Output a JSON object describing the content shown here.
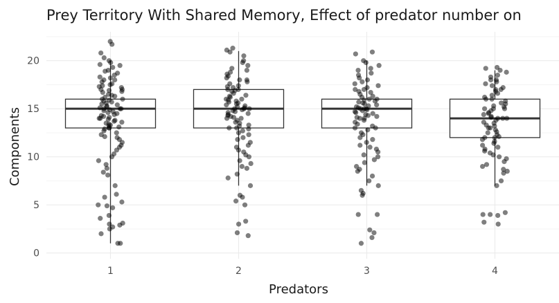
{
  "chart_data": {
    "type": "boxplot",
    "title": "Prey Territory With Shared Memory, Effect of predator number on",
    "xlabel": "Predators",
    "ylabel": "Components",
    "categories": [
      "1",
      "2",
      "3",
      "4"
    ],
    "ylim": [
      -0.6,
      23
    ],
    "yticks": [
      0,
      5,
      10,
      15,
      20
    ],
    "grid": true,
    "boxes": [
      {
        "category": "1",
        "whisker_low": 1,
        "q1": 13,
        "median": 15,
        "q3": 16,
        "whisker_high": 20,
        "points": [
          22,
          21.7,
          20.8,
          20.3,
          20,
          19.8,
          19.6,
          19.5,
          19.3,
          19,
          18.9,
          18.7,
          18.5,
          18.3,
          18.2,
          18,
          18,
          17.8,
          17.6,
          17.5,
          17.4,
          17.3,
          17.2,
          17,
          17,
          16.9,
          16.8,
          16.7,
          16.5,
          16.4,
          16.3,
          16.2,
          16,
          16,
          15.9,
          15.8,
          15.7,
          15.6,
          15.5,
          15.4,
          15.3,
          15.2,
          15.1,
          15,
          15,
          15,
          14.9,
          14.8,
          14.7,
          14.6,
          14.5,
          14.4,
          14.3,
          14.2,
          14.1,
          14,
          14,
          13.9,
          13.8,
          13.7,
          13.6,
          13.5,
          13.4,
          13.3,
          13.2,
          13.1,
          13,
          13,
          12.9,
          12.7,
          12.5,
          12.3,
          12.1,
          12,
          11.8,
          11.5,
          11.2,
          11,
          10.7,
          10.3,
          10,
          9.6,
          9.2,
          8.8,
          8.4,
          8.1,
          7,
          6.1,
          5.8,
          5.3,
          5,
          4.9,
          4.7,
          3.9,
          3.6,
          3.1,
          3,
          2.9,
          2.7,
          2.5,
          2,
          1,
          1
        ]
      },
      {
        "category": "2",
        "whisker_low": 7,
        "q1": 13,
        "median": 15,
        "q3": 17,
        "whisker_high": 21,
        "points": [
          21.3,
          21.1,
          20.9,
          20.5,
          20,
          19.8,
          19.5,
          19.2,
          19,
          18.8,
          18.6,
          18.4,
          18.2,
          18,
          18,
          17.8,
          17.6,
          17.4,
          17.3,
          17.2,
          17,
          17,
          16.9,
          16.8,
          16.6,
          16.4,
          16.3,
          16.2,
          16,
          16,
          15.9,
          15.8,
          15.7,
          15.6,
          15.5,
          15.4,
          15.3,
          15.2,
          15.1,
          15,
          15,
          15,
          14.9,
          14.8,
          14.7,
          14.6,
          14.5,
          14.4,
          14.3,
          14.2,
          14.1,
          14,
          14,
          13.8,
          13.6,
          13.5,
          13.3,
          13.2,
          13,
          13,
          12.9,
          12.7,
          12.5,
          12.3,
          12,
          11.8,
          11.5,
          11.2,
          11,
          10.7,
          10.5,
          10.2,
          10,
          9.6,
          9.3,
          9,
          8.8,
          8.2,
          7.8,
          7,
          6,
          5.8,
          5.4,
          5,
          3.3,
          3,
          2.1,
          1.8
        ]
      },
      {
        "category": "3",
        "whisker_low": 7,
        "q1": 13,
        "median": 15,
        "q3": 16,
        "whisker_high": 20,
        "points": [
          20.9,
          20.7,
          20,
          19.8,
          19.5,
          19.2,
          19,
          18.7,
          18.5,
          18.2,
          18,
          17.8,
          17.6,
          17.4,
          17.2,
          17,
          17,
          16.8,
          16.7,
          16.5,
          16.3,
          16.2,
          16,
          16,
          15.9,
          15.8,
          15.7,
          15.6,
          15.5,
          15.4,
          15.3,
          15.2,
          15.1,
          15,
          15,
          15,
          14.9,
          14.8,
          14.7,
          14.6,
          14.5,
          14.4,
          14.3,
          14.2,
          14.1,
          14,
          14,
          13.8,
          13.6,
          13.4,
          13.2,
          13,
          13,
          12.8,
          12.5,
          12.3,
          12,
          11.8,
          11.5,
          11.2,
          11,
          10.8,
          10.5,
          10.2,
          10,
          9.7,
          9.4,
          9,
          8.7,
          8.5,
          8,
          7.5,
          7,
          6.5,
          6.2,
          6,
          4,
          4,
          2.4,
          2.1,
          1.6,
          1
        ]
      },
      {
        "category": "4",
        "whisker_low": 7,
        "q1": 12,
        "median": 14,
        "q3": 16,
        "whisker_high": 19,
        "points": [
          19.3,
          19.2,
          19,
          18.8,
          18.5,
          18.3,
          18,
          18,
          17.8,
          17.6,
          17.4,
          17.2,
          17,
          17,
          16.8,
          16.6,
          16.4,
          16.2,
          16,
          16,
          15.8,
          15.6,
          15.5,
          15.3,
          15.2,
          15,
          15,
          15,
          14.8,
          14.6,
          14.5,
          14.4,
          14.2,
          14.1,
          14,
          14,
          14,
          13.8,
          13.6,
          13.5,
          13.3,
          13.2,
          13,
          13,
          12.8,
          12.6,
          12.5,
          12.3,
          12.1,
          12,
          12,
          11.8,
          11.6,
          11.4,
          11.2,
          11,
          10.8,
          10.6,
          10.4,
          10.2,
          10,
          9.8,
          9.5,
          9.2,
          9,
          8.7,
          8.5,
          8.3,
          7.5,
          7,
          4.2,
          4,
          4,
          3.9,
          3.2,
          3
        ]
      }
    ]
  }
}
